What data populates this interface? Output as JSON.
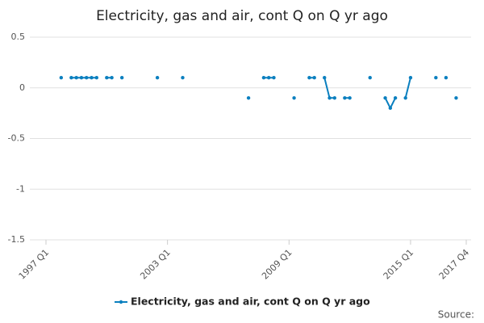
{
  "chart_data": {
    "type": "line",
    "title": "Electricity, gas and air, cont Q on Q yr ago",
    "source": "Source:",
    "categories": [
      "1997 Q1",
      null,
      null,
      null,
      null,
      null,
      null,
      null,
      null,
      null,
      null,
      null,
      null,
      null,
      null,
      null,
      null,
      null,
      null,
      null,
      null,
      null,
      null,
      null,
      "2003 Q1",
      null,
      null,
      null,
      null,
      null,
      null,
      null,
      null,
      null,
      null,
      null,
      null,
      null,
      null,
      null,
      null,
      null,
      null,
      null,
      null,
      null,
      null,
      null,
      "2009 Q1",
      null,
      null,
      null,
      null,
      null,
      null,
      null,
      null,
      null,
      null,
      null,
      null,
      null,
      null,
      null,
      null,
      null,
      null,
      null,
      null,
      null,
      null,
      null,
      "2015 Q1",
      null,
      null,
      null,
      null,
      null,
      null,
      null,
      null,
      null,
      null,
      "2017 Q4"
    ],
    "series": [
      {
        "name": "Electricity, gas and air, cont Q on Q yr ago",
        "color": "#0a7fbf",
        "values": [
          null,
          null,
          null,
          0.1,
          null,
          0.1,
          0.1,
          0.1,
          0.1,
          0.1,
          0.1,
          null,
          0.1,
          0.1,
          null,
          0.1,
          null,
          null,
          null,
          null,
          null,
          null,
          0.1,
          null,
          null,
          null,
          null,
          0.1,
          null,
          null,
          null,
          null,
          null,
          null,
          null,
          null,
          null,
          null,
          null,
          null,
          -0.1,
          null,
          null,
          0.1,
          0.1,
          0.1,
          null,
          null,
          null,
          -0.1,
          null,
          null,
          0.1,
          0.1,
          null,
          0.1,
          -0.1,
          -0.1,
          null,
          -0.1,
          -0.1,
          null,
          null,
          null,
          0.1,
          null,
          null,
          -0.1,
          -0.2,
          -0.1,
          null,
          -0.1,
          0.1,
          null,
          null,
          null,
          null,
          0.1,
          null,
          0.1,
          null,
          -0.1,
          null,
          null
        ]
      }
    ],
    "ylim": [
      -1.5,
      0.5
    ],
    "yticks": [
      0.5,
      0,
      -0.5,
      -1,
      -1.5
    ],
    "grid": true
  }
}
